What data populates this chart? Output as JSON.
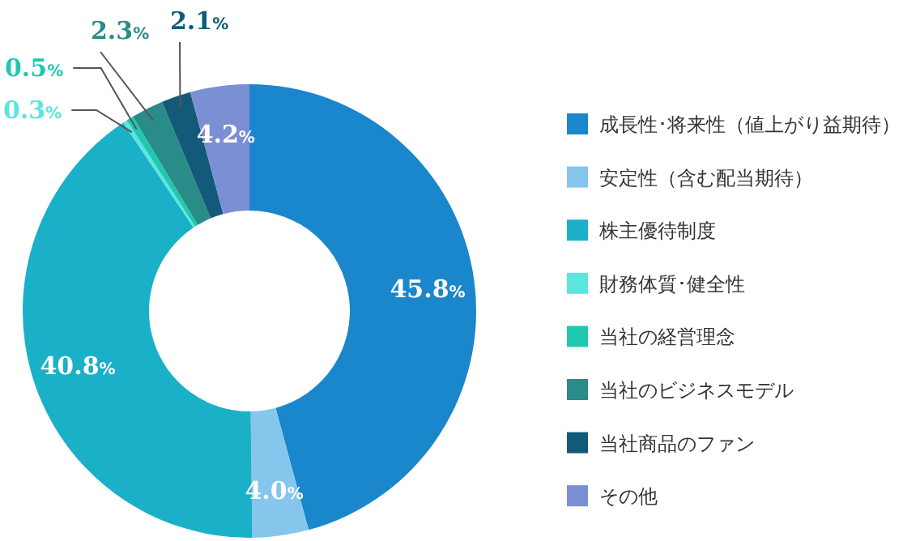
{
  "chart_data": {
    "type": "donut",
    "legend": "right",
    "categories": [
      "成長性･将来性（値上がり益期待）",
      "安定性（含む配当期待）",
      "株主優待制度",
      "財務体質･健全性",
      "当社の経営理念",
      "当社のビジネスモデル",
      "当社商品のファン",
      "その他"
    ],
    "values": [
      45.8,
      4.0,
      40.8,
      0.3,
      0.5,
      2.3,
      2.1,
      4.2
    ],
    "value_labels": [
      "45.8%",
      "4.0%",
      "40.8%",
      "0.3%",
      "0.5%",
      "2.3%",
      "2.1%",
      "4.2%"
    ],
    "colors": [
      "#1a87cc",
      "#86c6ec",
      "#1ab0c8",
      "#5ce5df",
      "#1fc9b0",
      "#2a8c88",
      "#135a7a",
      "#7b8fd4"
    ]
  }
}
